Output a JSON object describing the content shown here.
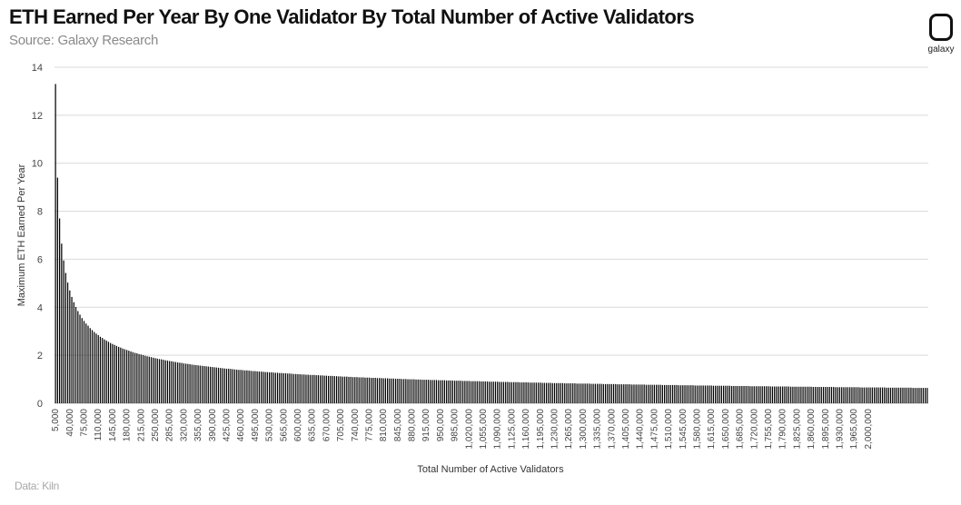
{
  "header": {
    "title": "ETH Earned Per Year By One Validator By Total  Number of Active Validators",
    "subtitle": "Source: Galaxy Research"
  },
  "logo": {
    "text": "galaxy",
    "icon": "galaxy-logo-icon"
  },
  "footer": {
    "text": "Data: Kiln"
  },
  "colors": {
    "bar": "#000000",
    "grid": "#d9d9d9",
    "axis": "#bfbfbf"
  },
  "chart_data": {
    "type": "bar",
    "title": "ETH Earned Per Year By One Validator By Total  Number of Active Validators",
    "xlabel": "Total Number of Active Validators",
    "ylabel": "Maximum ETH Earned Per Year",
    "ylim": [
      0,
      14
    ],
    "yticks": [
      0,
      2,
      4,
      6,
      8,
      10,
      12,
      14
    ],
    "grid": true,
    "legend": "none",
    "x_start": 5000,
    "x_step": 5000,
    "x_end": 2000000,
    "value_formula_note": "values follow approximately 940 / sqrt(validators)",
    "xtick_labels": [
      "5,000",
      "40,000",
      "75,000",
      "110,000",
      "145,000",
      "180,000",
      "215,000",
      "250,000",
      "285,000",
      "320,000",
      "355,000",
      "390,000",
      "425,000",
      "460,000",
      "495,000",
      "530,000",
      "565,000",
      "600,000",
      "635,000",
      "670,000",
      "705,000",
      "740,000",
      "775,000",
      "810,000",
      "845,000",
      "880,000",
      "915,000",
      "950,000",
      "985,000",
      "1,020,000",
      "1,055,000",
      "1,090,000",
      "1,125,000",
      "1,160,000",
      "1,195,000",
      "1,230,000",
      "1,265,000",
      "1,300,000",
      "1,335,000",
      "1,370,000",
      "1,405,000",
      "1,440,000",
      "1,475,000",
      "1,510,000",
      "1,545,000",
      "1,580,000",
      "1,615,000",
      "1,650,000",
      "1,685,000",
      "1,720,000",
      "1,755,000",
      "1,790,000",
      "1,825,000",
      "1,860,000",
      "1,895,000",
      "1,930,000",
      "1,965,000",
      "2,000,000"
    ],
    "values": [
      13.3,
      9.4,
      7.7,
      6.65,
      5.95,
      5.43,
      5.03,
      4.7,
      4.43,
      4.21,
      4.01,
      3.84,
      3.69,
      3.55,
      3.43,
      3.32,
      3.23,
      3.13,
      3.05,
      2.97,
      2.9,
      2.84,
      2.77,
      2.72,
      2.66,
      2.61,
      2.56,
      2.51,
      2.47,
      2.43,
      2.39,
      2.35,
      2.32,
      2.28,
      2.25,
      2.22,
      2.19,
      2.16,
      2.13,
      2.1,
      2.08,
      2.05,
      2.03,
      2.01,
      1.98,
      1.96,
      1.94,
      1.92,
      1.9,
      1.88,
      1.86,
      1.84,
      1.83,
      1.81,
      1.79,
      1.78,
      1.76,
      1.75,
      1.73,
      1.72,
      1.7,
      1.69,
      1.68,
      1.66,
      1.65,
      1.64,
      1.63,
      1.61,
      1.6,
      1.59,
      1.58,
      1.57,
      1.56,
      1.55,
      1.54,
      1.53,
      1.52,
      1.51,
      1.5,
      1.49,
      1.48,
      1.47,
      1.46,
      1.45,
      1.44,
      1.44,
      1.43,
      1.42,
      1.41,
      1.4,
      1.39,
      1.39,
      1.38,
      1.37,
      1.37,
      1.36,
      1.35,
      1.34,
      1.34,
      1.33,
      1.32,
      1.32,
      1.31,
      1.3,
      1.3,
      1.29,
      1.29,
      1.28,
      1.27,
      1.27,
      1.26,
      1.26,
      1.25,
      1.25,
      1.24,
      1.24,
      1.23,
      1.22,
      1.22,
      1.21,
      1.21,
      1.2,
      1.2,
      1.19,
      1.19,
      1.18,
      1.18,
      1.18,
      1.17,
      1.17,
      1.16,
      1.16,
      1.15,
      1.15,
      1.14,
      1.14,
      1.14,
      1.13,
      1.13,
      1.12,
      1.12,
      1.11,
      1.11,
      1.11,
      1.1,
      1.1,
      1.09,
      1.09,
      1.09,
      1.08,
      1.08,
      1.08,
      1.07,
      1.07,
      1.07,
      1.06,
      1.06,
      1.06,
      1.05,
      1.05,
      1.05,
      1.04,
      1.04,
      1.04,
      1.03,
      1.03,
      1.03,
      1.02,
      1.02,
      1.02,
      1.01,
      1.01,
      1.01,
      1.0,
      1.0,
      1.0,
      1.0,
      0.99,
      0.99,
      0.99,
      0.98,
      0.98,
      0.98,
      0.98,
      0.97,
      0.97,
      0.97,
      0.97,
      0.96,
      0.96,
      0.96,
      0.96,
      0.95,
      0.95,
      0.95,
      0.95,
      0.94,
      0.94,
      0.94,
      0.94,
      0.93,
      0.93,
      0.93,
      0.93,
      0.92,
      0.92,
      0.92,
      0.92,
      0.92,
      0.91,
      0.91,
      0.91,
      0.91,
      0.9,
      0.9,
      0.9,
      0.9,
      0.9,
      0.89,
      0.89,
      0.89,
      0.89,
      0.89,
      0.88,
      0.88,
      0.88,
      0.88,
      0.88,
      0.87,
      0.87,
      0.87,
      0.87,
      0.87,
      0.86,
      0.86,
      0.86,
      0.86,
      0.86,
      0.86,
      0.85,
      0.85,
      0.85,
      0.85,
      0.85,
      0.84,
      0.84,
      0.84,
      0.84,
      0.84,
      0.84,
      0.83,
      0.83,
      0.83,
      0.83,
      0.83,
      0.83,
      0.82,
      0.82,
      0.82,
      0.82,
      0.82,
      0.82,
      0.82,
      0.81,
      0.81,
      0.81,
      0.81,
      0.81,
      0.81,
      0.8,
      0.8,
      0.8,
      0.8,
      0.8,
      0.8,
      0.8,
      0.79,
      0.79,
      0.79,
      0.79,
      0.79,
      0.79,
      0.79,
      0.78,
      0.78,
      0.78,
      0.78,
      0.78,
      0.78,
      0.78,
      0.77,
      0.77,
      0.77,
      0.77,
      0.77,
      0.77,
      0.77,
      0.77,
      0.76,
      0.76,
      0.76,
      0.76,
      0.76,
      0.76,
      0.76,
      0.76,
      0.75,
      0.75,
      0.75,
      0.75,
      0.75,
      0.75,
      0.75,
      0.75,
      0.74,
      0.74,
      0.74,
      0.74,
      0.74,
      0.74,
      0.74,
      0.74,
      0.74,
      0.73,
      0.73,
      0.73,
      0.73,
      0.73,
      0.73,
      0.73,
      0.73,
      0.73,
      0.72,
      0.72,
      0.72,
      0.72,
      0.72,
      0.72,
      0.72,
      0.72,
      0.72,
      0.71,
      0.71,
      0.71,
      0.71,
      0.71,
      0.71,
      0.71,
      0.71,
      0.71,
      0.71,
      0.7,
      0.7,
      0.7,
      0.7,
      0.7,
      0.7,
      0.7,
      0.7,
      0.7,
      0.7,
      0.69,
      0.69,
      0.69,
      0.69,
      0.69,
      0.69,
      0.69,
      0.69,
      0.69,
      0.69,
      0.69,
      0.68,
      0.68,
      0.68,
      0.68,
      0.68,
      0.68,
      0.68,
      0.68,
      0.68,
      0.68,
      0.68,
      0.67,
      0.67,
      0.67,
      0.67,
      0.67,
      0.67,
      0.67,
      0.67,
      0.67,
      0.67,
      0.67,
      0.67,
      0.66,
      0.66,
      0.66,
      0.66,
      0.66,
      0.66,
      0.66,
      0.66,
      0.66,
      0.66,
      0.66,
      0.66,
      0.66,
      0.65,
      0.65,
      0.65,
      0.65,
      0.65,
      0.65,
      0.65,
      0.65,
      0.65,
      0.65,
      0.65,
      0.65,
      0.65,
      0.64,
      0.64,
      0.64,
      0.64,
      0.64,
      0.64,
      0.64,
      0.64
    ]
  }
}
